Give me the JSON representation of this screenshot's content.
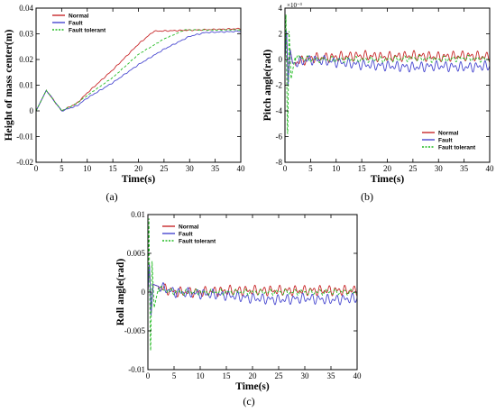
{
  "colors": {
    "normal": "#c8282a",
    "fault": "#4848d0",
    "fault_tolerant": "#22bb22"
  },
  "chart_data": [
    {
      "id": "a",
      "type": "line",
      "caption": "(a)",
      "xlabel": "Time(s)",
      "ylabel": "Height of mass center(m)",
      "xlim": [
        0,
        40
      ],
      "ylim": [
        -0.02,
        0.04
      ],
      "xticks": [
        0,
        5,
        10,
        15,
        20,
        25,
        30,
        35,
        40
      ],
      "yticks": [
        -0.02,
        -0.01,
        0,
        0.01,
        0.02,
        0.03,
        0.04
      ],
      "ytick_labels": [
        "-0.02",
        "-0.01",
        "0",
        "0.01",
        "0.02",
        "0.03",
        "0.04"
      ],
      "exponent_label": "",
      "legend": "top-left",
      "series": [
        {
          "name": "Normal",
          "color": "normal",
          "dash": "",
          "points": [
            [
              0,
              0
            ],
            [
              2,
              0.008
            ],
            [
              5,
              0
            ],
            [
              8,
              0.003
            ],
            [
              10,
              0.007
            ],
            [
              15,
              0.016
            ],
            [
              20,
              0.026
            ],
            [
              23,
              0.031
            ],
            [
              40,
              0.032
            ]
          ]
        },
        {
          "name": "Fault",
          "color": "fault",
          "dash": "",
          "points": [
            [
              0,
              0
            ],
            [
              2,
              0.008
            ],
            [
              5,
              0
            ],
            [
              8,
              0.002
            ],
            [
              10,
              0.005
            ],
            [
              15,
              0.011
            ],
            [
              20,
              0.018
            ],
            [
              25,
              0.024
            ],
            [
              30,
              0.029
            ],
            [
              33,
              0.0305
            ],
            [
              40,
              0.031
            ]
          ]
        },
        {
          "name": "Fault tolerant",
          "color": "fault_tolerant",
          "dash": "3,2",
          "points": [
            [
              0,
              0
            ],
            [
              2,
              0.008
            ],
            [
              5,
              0
            ],
            [
              8,
              0.003
            ],
            [
              10,
              0.006
            ],
            [
              15,
              0.013
            ],
            [
              20,
              0.022
            ],
            [
              25,
              0.028
            ],
            [
              29,
              0.0315
            ],
            [
              40,
              0.0315
            ]
          ]
        }
      ]
    },
    {
      "id": "b",
      "type": "line",
      "caption": "(b)",
      "xlabel": "Time(s)",
      "ylabel": "Pitch angle(rad)",
      "xlim": [
        0,
        40
      ],
      "ylim": [
        -8,
        4
      ],
      "xticks": [
        0,
        5,
        10,
        15,
        20,
        25,
        30,
        35,
        40
      ],
      "yticks": [
        -8,
        -6,
        -4,
        -2,
        0,
        2,
        4
      ],
      "ytick_labels": [
        "-8",
        "-6",
        "-4",
        "-2",
        "0",
        "2",
        "4"
      ],
      "exponent_label": "×10⁻³",
      "legend": "bottom-right",
      "series": [
        {
          "name": "Normal",
          "color": "normal",
          "dash": "",
          "points": [
            [
              0,
              0
            ],
            [
              0.3,
              2.5
            ],
            [
              0.6,
              -2
            ],
            [
              1,
              0.8
            ],
            [
              1.5,
              -0.3
            ],
            [
              5,
              0.1
            ],
            [
              10,
              0.2
            ],
            [
              15,
              0.3
            ],
            [
              20,
              0.2
            ],
            [
              25,
              0.3
            ],
            [
              30,
              0.2
            ],
            [
              35,
              0.3
            ],
            [
              40,
              0.2
            ]
          ]
        },
        {
          "name": "Fault",
          "color": "fault",
          "dash": "",
          "points": [
            [
              0,
              0
            ],
            [
              0.3,
              2.5
            ],
            [
              0.6,
              -2
            ],
            [
              1,
              0.8
            ],
            [
              1.5,
              -0.3
            ],
            [
              5,
              0
            ],
            [
              10,
              -0.2
            ],
            [
              15,
              -0.4
            ],
            [
              20,
              -0.5
            ],
            [
              25,
              -0.6
            ],
            [
              30,
              -0.5
            ],
            [
              35,
              -0.6
            ],
            [
              40,
              -0.5
            ]
          ]
        },
        {
          "name": "Fault tolerant",
          "color": "fault_tolerant",
          "dash": "3,2",
          "points": [
            [
              0,
              0
            ],
            [
              0.2,
              3.5
            ],
            [
              0.5,
              -6.8
            ],
            [
              0.8,
              2.2
            ],
            [
              1.2,
              -1.5
            ],
            [
              2,
              0.2
            ],
            [
              5,
              0
            ],
            [
              10,
              0
            ],
            [
              15,
              0
            ],
            [
              20,
              0
            ],
            [
              25,
              0.1
            ],
            [
              30,
              0
            ],
            [
              35,
              0.1
            ],
            [
              40,
              0
            ]
          ]
        }
      ]
    },
    {
      "id": "c",
      "type": "line",
      "caption": "(c)",
      "xlabel": "Time(s)",
      "ylabel": "Roll angle(rad)",
      "xlim": [
        0,
        40
      ],
      "ylim": [
        -0.01,
        0.01
      ],
      "xticks": [
        0,
        5,
        10,
        15,
        20,
        25,
        30,
        35,
        40
      ],
      "yticks": [
        -0.01,
        -0.005,
        0,
        0.005,
        0.01
      ],
      "ytick_labels": [
        "-0.01",
        "-0.005",
        "0",
        "0.005",
        "0.01"
      ],
      "exponent_label": "",
      "legend": "top-left",
      "series": [
        {
          "name": "Normal",
          "color": "normal",
          "dash": "",
          "points": [
            [
              0,
              0
            ],
            [
              0.3,
              0.004
            ],
            [
              0.6,
              -0.003
            ],
            [
              1,
              0.001
            ],
            [
              5,
              0
            ],
            [
              10,
              0
            ],
            [
              15,
              0.0002
            ],
            [
              20,
              0.0002
            ],
            [
              25,
              0.0002
            ],
            [
              30,
              0.0002
            ],
            [
              35,
              0.0002
            ],
            [
              40,
              0.0002
            ]
          ]
        },
        {
          "name": "Fault",
          "color": "fault",
          "dash": "",
          "points": [
            [
              0,
              0
            ],
            [
              0.3,
              0.004
            ],
            [
              0.6,
              -0.003
            ],
            [
              1,
              0.001
            ],
            [
              5,
              0
            ],
            [
              10,
              -0.0002
            ],
            [
              15,
              -0.0004
            ],
            [
              20,
              -0.0008
            ],
            [
              25,
              -0.001
            ],
            [
              30,
              -0.0008
            ],
            [
              35,
              -0.001
            ],
            [
              40,
              -0.0008
            ]
          ]
        },
        {
          "name": "Fault tolerant",
          "color": "fault_tolerant",
          "dash": "3,2",
          "points": [
            [
              0,
              0
            ],
            [
              0.2,
              0.0095
            ],
            [
              0.5,
              -0.009
            ],
            [
              0.8,
              0.004
            ],
            [
              1.2,
              -0.002
            ],
            [
              2,
              0.0005
            ],
            [
              5,
              0
            ],
            [
              10,
              0
            ],
            [
              15,
              0
            ],
            [
              20,
              0
            ],
            [
              25,
              0
            ],
            [
              30,
              0
            ],
            [
              35,
              0
            ],
            [
              40,
              0
            ]
          ]
        }
      ]
    }
  ]
}
